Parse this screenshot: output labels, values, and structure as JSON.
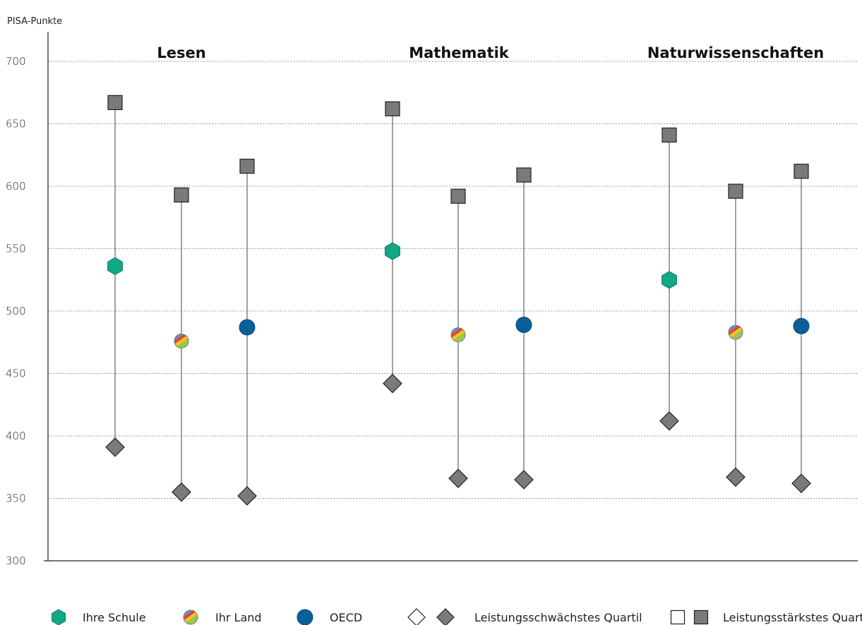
{
  "chart_data": {
    "type": "range-dot",
    "ylabel": "PISA-Punkte",
    "ylim": [
      300,
      700
    ],
    "yticks": [
      300,
      350,
      400,
      450,
      500,
      550,
      600,
      650,
      700
    ],
    "grid": true,
    "groups": [
      "Lesen",
      "Mathematik",
      "Naturwissenschaften"
    ],
    "series": [
      {
        "name": "Ihre Schule",
        "mean": [
          536,
          548,
          525
        ],
        "low": [
          391,
          442,
          412
        ],
        "high": [
          667,
          662,
          641
        ]
      },
      {
        "name": "Ihr Land",
        "mean": [
          476,
          481,
          483
        ],
        "low": [
          355,
          366,
          367
        ],
        "high": [
          593,
          592,
          596
        ]
      },
      {
        "name": "OECD",
        "mean": [
          487,
          489,
          488
        ],
        "low": [
          352,
          365,
          362
        ],
        "high": [
          616,
          609,
          612
        ]
      }
    ],
    "legend": {
      "placement": "bottom",
      "low_label": "Leistungsschwächstes Quartil",
      "high_label": "Leistungsstärkstes Quartil"
    },
    "colors": {
      "school": "#12a884",
      "oecd": "#0a5f99",
      "quartile": "#7a7a7a",
      "country_stripes": [
        "#5b8fd1",
        "#e4442a",
        "#f3c41f",
        "#9cc84a"
      ]
    }
  }
}
